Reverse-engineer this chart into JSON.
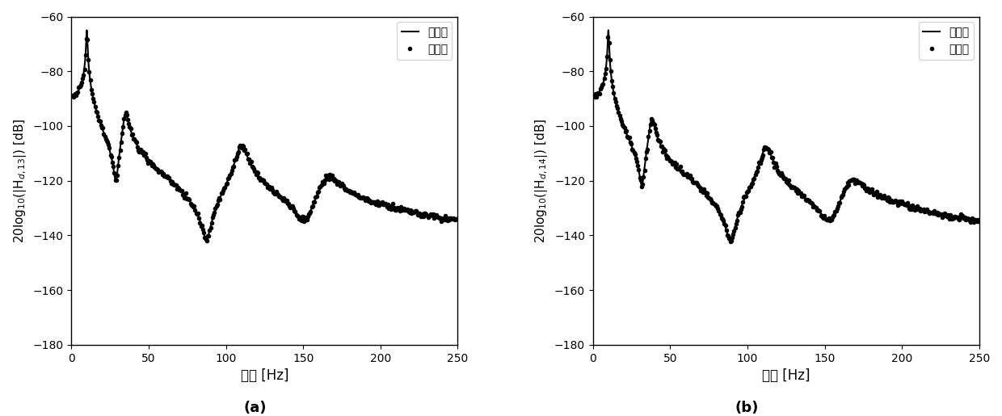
{
  "xlim": [
    0,
    250
  ],
  "ylim": [
    -180,
    -60
  ],
  "yticks": [
    -180,
    -160,
    -140,
    -120,
    -100,
    -80,
    -60
  ],
  "xticks": [
    0,
    50,
    100,
    150,
    200,
    250
  ],
  "xlabel": "频率 [Hz]",
  "ylabel_left": "20log$_{10}$(|H$_{d,13}$|) [dB]",
  "ylabel_right": "20log$_{10}$(|H$_{d,14}$|) [dB]",
  "legend_left": [
    "真实値",
    "预测値"
  ],
  "legend_right": [
    "预测値",
    "真实値"
  ],
  "label_a": "(a)",
  "label_b": "(b)",
  "bg_color": "#ffffff",
  "line_color": "#000000",
  "dot_color": "#000000",
  "dot_size": 3.0,
  "line_width": 1.5
}
